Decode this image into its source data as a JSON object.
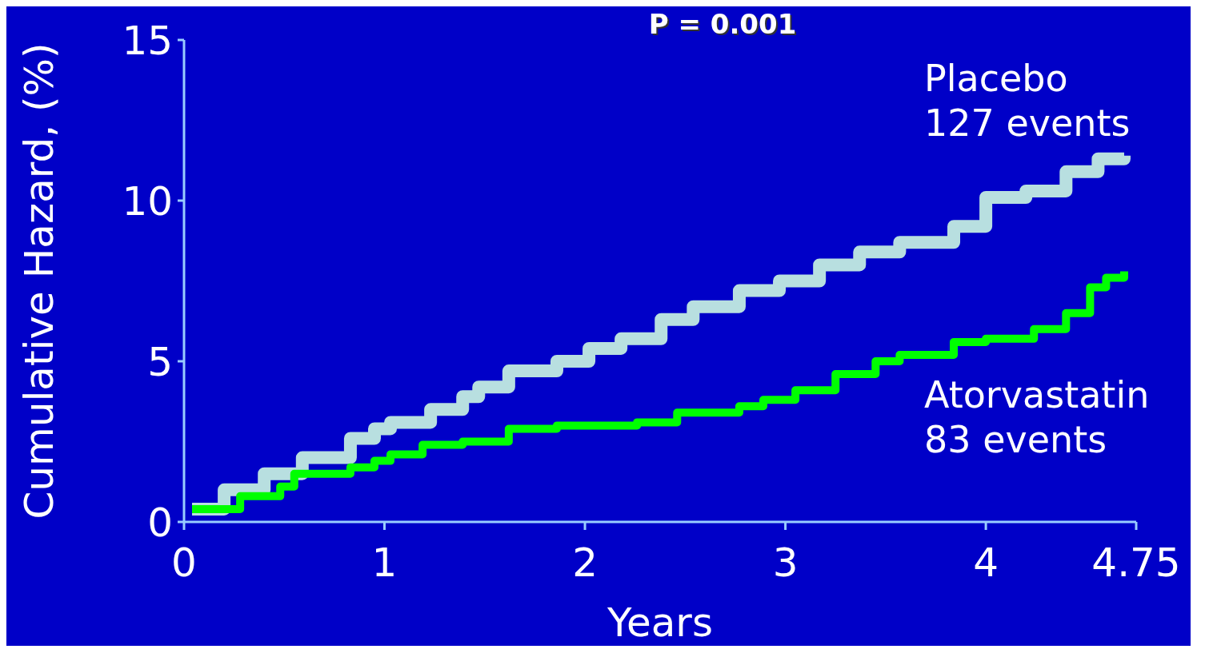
{
  "chart_data": {
    "type": "step",
    "xlabel": "Years",
    "ylabel": "Cumulative Hazard, (%)",
    "annotations": [
      "P = 0.001",
      "127 events",
      "83 events"
    ],
    "xlim": [
      0,
      4.75
    ],
    "xticks": [
      0,
      1,
      2,
      3,
      4,
      4.75
    ],
    "ylim": [
      0,
      15
    ],
    "yticks": [
      0,
      5,
      10,
      15
    ],
    "grid": false,
    "legend": false,
    "marker": "none",
    "line_style": "solid",
    "series": [
      {
        "name": "Placebo",
        "color": "#b8dfe0",
        "x": [
          0.04,
          0.2,
          0.4,
          0.59,
          0.83,
          0.95,
          1.03,
          1.23,
          1.39,
          1.47,
          1.62,
          1.86,
          2.02,
          2.18,
          2.38,
          2.54,
          2.77,
          2.97,
          3.17,
          3.37,
          3.57,
          3.84,
          4.0,
          4.2,
          4.4,
          4.56,
          4.69
        ],
        "values": [
          0.4,
          1.0,
          1.5,
          2.0,
          2.6,
          2.9,
          3.1,
          3.5,
          3.9,
          4.2,
          4.7,
          5.0,
          5.4,
          5.7,
          6.3,
          6.7,
          7.2,
          7.5,
          8.0,
          8.4,
          8.7,
          9.2,
          10.1,
          10.3,
          10.9,
          11.3,
          11.4
        ]
      },
      {
        "name": "Atorvastatin",
        "color": "#00ff00",
        "x": [
          0.04,
          0.28,
          0.48,
          0.55,
          0.83,
          0.95,
          1.03,
          1.19,
          1.39,
          1.62,
          1.86,
          2.26,
          2.46,
          2.77,
          2.89,
          3.05,
          3.25,
          3.45,
          3.57,
          3.84,
          4.0,
          4.24,
          4.4,
          4.52,
          4.6,
          4.69
        ],
        "values": [
          0.4,
          0.8,
          1.1,
          1.5,
          1.7,
          1.9,
          2.1,
          2.4,
          2.5,
          2.9,
          3.0,
          3.1,
          3.4,
          3.6,
          3.8,
          4.1,
          4.6,
          5.0,
          5.2,
          5.6,
          5.7,
          6.0,
          6.5,
          7.3,
          7.6,
          7.8
        ]
      }
    ]
  }
}
